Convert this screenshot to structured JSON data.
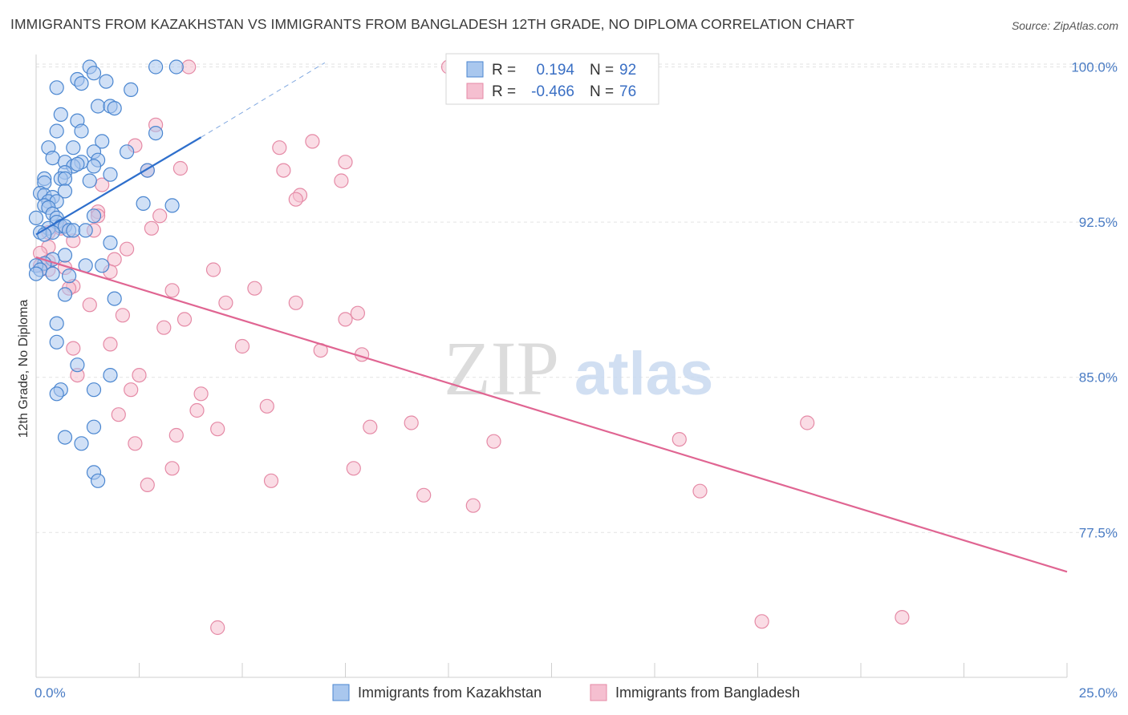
{
  "header": {
    "title": "IMMIGRANTS FROM KAZAKHSTAN VS IMMIGRANTS FROM BANGLADESH 12TH GRADE, NO DIPLOMA CORRELATION CHART",
    "source": "Source: ZipAtlas.com"
  },
  "watermark": {
    "zip": "ZIP",
    "atlas": "atlas"
  },
  "colors": {
    "blue_fill": "#a9c7ee",
    "blue_stroke": "#4a86d0",
    "blue_line": "#2e6fcc",
    "pink_fill": "#f5bfd0",
    "pink_stroke": "#e58aa6",
    "pink_line": "#e06592",
    "grid": "#e3e3e3",
    "axis_text": "#4a7cc4"
  },
  "legend": {
    "rows": [
      {
        "r_label": "R =",
        "r_value": "0.194",
        "n_label": "N =",
        "n_value": "92"
      },
      {
        "r_label": "R =",
        "r_value": "-0.466",
        "n_label": "N =",
        "n_value": "76"
      }
    ]
  },
  "chart_data": {
    "type": "scatter",
    "title": "IMMIGRANTS FROM KAZAKHSTAN VS IMMIGRANTS FROM BANGLADESH 12TH GRADE, NO DIPLOMA CORRELATION CHART",
    "xlabel": "",
    "ylabel": "12th Grade, No Diploma",
    "xlim": [
      0,
      25
    ],
    "ylim": [
      70.5,
      100.6
    ],
    "x_tick_labels": [
      "0.0%",
      "25.0%"
    ],
    "y_ticks": [
      77.5,
      85.0,
      92.5,
      100.0
    ],
    "y_tick_labels": [
      "77.5%",
      "85.0%",
      "92.5%",
      "100.0%"
    ],
    "grid": true,
    "legend_position": "top-center",
    "series": [
      {
        "name": "Immigrants from Kazakhstan",
        "color": "#4a86d0",
        "r": 0.194,
        "n": 92,
        "trend": {
          "x": [
            0.0,
            4.0
          ],
          "y": [
            91.9,
            96.6
          ],
          "dashed_to": [
            7.0,
            100.2
          ]
        },
        "points": [
          [
            1.3,
            100.0
          ],
          [
            1.4,
            99.7
          ],
          [
            2.9,
            100.0
          ],
          [
            3.4,
            100.0
          ],
          [
            1.0,
            99.4
          ],
          [
            1.1,
            99.2
          ],
          [
            1.7,
            99.3
          ],
          [
            0.5,
            99.0
          ],
          [
            2.3,
            98.9
          ],
          [
            1.5,
            98.1
          ],
          [
            1.8,
            98.1
          ],
          [
            1.9,
            98.0
          ],
          [
            0.6,
            97.7
          ],
          [
            1.0,
            97.4
          ],
          [
            0.5,
            96.9
          ],
          [
            1.1,
            96.9
          ],
          [
            2.9,
            96.8
          ],
          [
            1.6,
            96.4
          ],
          [
            0.9,
            96.1
          ],
          [
            0.3,
            96.1
          ],
          [
            1.4,
            95.9
          ],
          [
            2.2,
            95.9
          ],
          [
            0.4,
            95.6
          ],
          [
            1.1,
            95.4
          ],
          [
            1.5,
            95.5
          ],
          [
            0.7,
            95.4
          ],
          [
            0.9,
            95.2
          ],
          [
            1.0,
            95.3
          ],
          [
            1.4,
            95.2
          ],
          [
            2.7,
            95.0
          ],
          [
            0.7,
            94.9
          ],
          [
            1.8,
            94.8
          ],
          [
            0.2,
            94.6
          ],
          [
            0.6,
            94.6
          ],
          [
            0.7,
            94.6
          ],
          [
            1.3,
            94.5
          ],
          [
            0.2,
            94.4
          ],
          [
            0.7,
            94.0
          ],
          [
            0.1,
            93.9
          ],
          [
            0.2,
            93.8
          ],
          [
            0.4,
            93.7
          ],
          [
            0.3,
            93.5
          ],
          [
            0.5,
            93.5
          ],
          [
            0.2,
            93.3
          ],
          [
            0.3,
            93.2
          ],
          [
            2.6,
            93.4
          ],
          [
            3.3,
            93.3
          ],
          [
            0.4,
            92.9
          ],
          [
            0.5,
            92.7
          ],
          [
            0.0,
            92.7
          ],
          [
            1.4,
            92.8
          ],
          [
            0.5,
            92.5
          ],
          [
            0.6,
            92.3
          ],
          [
            0.7,
            92.3
          ],
          [
            0.8,
            92.1
          ],
          [
            0.3,
            92.2
          ],
          [
            0.1,
            92.0
          ],
          [
            0.9,
            92.1
          ],
          [
            1.2,
            92.1
          ],
          [
            0.4,
            92.0
          ],
          [
            0.2,
            91.9
          ],
          [
            1.8,
            91.5
          ],
          [
            0.7,
            90.9
          ],
          [
            0.4,
            90.7
          ],
          [
            0.2,
            90.5
          ],
          [
            1.2,
            90.4
          ],
          [
            1.6,
            90.4
          ],
          [
            0.0,
            90.4
          ],
          [
            0.1,
            90.2
          ],
          [
            0.0,
            90.0
          ],
          [
            0.4,
            90.0
          ],
          [
            0.8,
            89.9
          ],
          [
            0.7,
            89.0
          ],
          [
            1.9,
            88.8
          ],
          [
            0.5,
            87.6
          ],
          [
            0.5,
            86.7
          ],
          [
            1.0,
            85.6
          ],
          [
            1.8,
            85.1
          ],
          [
            1.4,
            84.4
          ],
          [
            0.6,
            84.4
          ],
          [
            0.5,
            84.2
          ],
          [
            1.4,
            82.6
          ],
          [
            0.7,
            82.1
          ],
          [
            1.1,
            81.8
          ],
          [
            1.4,
            80.4
          ],
          [
            1.5,
            80.0
          ]
        ]
      },
      {
        "name": "Immigrants from Bangladesh",
        "color": "#e58aa6",
        "r": -0.466,
        "n": 76,
        "trend": {
          "x": [
            0.0,
            25.0
          ],
          "y": [
            90.8,
            75.6
          ]
        },
        "points": [
          [
            10.0,
            100.0
          ],
          [
            3.7,
            100.0
          ],
          [
            2.9,
            97.2
          ],
          [
            6.7,
            96.4
          ],
          [
            5.9,
            96.1
          ],
          [
            2.4,
            96.2
          ],
          [
            7.5,
            95.4
          ],
          [
            2.7,
            95.0
          ],
          [
            3.5,
            95.1
          ],
          [
            6.0,
            95.0
          ],
          [
            7.4,
            94.5
          ],
          [
            1.6,
            94.3
          ],
          [
            6.4,
            93.8
          ],
          [
            6.3,
            93.6
          ],
          [
            1.5,
            93.0
          ],
          [
            1.5,
            92.8
          ],
          [
            3.0,
            92.8
          ],
          [
            2.8,
            92.2
          ],
          [
            0.6,
            92.2
          ],
          [
            0.3,
            92.0
          ],
          [
            1.4,
            92.1
          ],
          [
            0.9,
            91.6
          ],
          [
            0.3,
            91.3
          ],
          [
            2.2,
            91.2
          ],
          [
            0.1,
            91.0
          ],
          [
            1.9,
            90.7
          ],
          [
            0.3,
            90.6
          ],
          [
            0.7,
            90.3
          ],
          [
            0.1,
            90.4
          ],
          [
            0.3,
            90.2
          ],
          [
            4.3,
            90.2
          ],
          [
            1.8,
            90.1
          ],
          [
            0.9,
            89.4
          ],
          [
            0.8,
            89.3
          ],
          [
            3.3,
            89.2
          ],
          [
            5.3,
            89.3
          ],
          [
            6.3,
            88.6
          ],
          [
            4.6,
            88.6
          ],
          [
            1.3,
            88.5
          ],
          [
            2.1,
            88.0
          ],
          [
            3.6,
            87.8
          ],
          [
            7.8,
            88.1
          ],
          [
            7.5,
            87.8
          ],
          [
            3.1,
            87.4
          ],
          [
            0.9,
            86.4
          ],
          [
            1.8,
            86.6
          ],
          [
            5.0,
            86.5
          ],
          [
            6.9,
            86.3
          ],
          [
            7.9,
            86.1
          ],
          [
            2.5,
            85.1
          ],
          [
            1.0,
            85.1
          ],
          [
            4.0,
            84.2
          ],
          [
            2.3,
            84.4
          ],
          [
            3.9,
            83.4
          ],
          [
            5.6,
            83.6
          ],
          [
            2.0,
            83.2
          ],
          [
            9.1,
            82.8
          ],
          [
            8.1,
            82.6
          ],
          [
            4.4,
            82.5
          ],
          [
            3.4,
            82.2
          ],
          [
            15.6,
            82.0
          ],
          [
            2.4,
            81.8
          ],
          [
            11.1,
            81.9
          ],
          [
            18.7,
            82.8
          ],
          [
            3.3,
            80.6
          ],
          [
            7.7,
            80.6
          ],
          [
            2.7,
            79.8
          ],
          [
            5.7,
            80.0
          ],
          [
            16.1,
            79.5
          ],
          [
            9.4,
            79.3
          ],
          [
            10.6,
            78.8
          ],
          [
            4.4,
            72.9
          ],
          [
            17.6,
            73.2
          ],
          [
            21.0,
            73.4
          ]
        ]
      }
    ]
  },
  "bottom_legend": {
    "items": [
      "Immigrants from Kazakhstan",
      "Immigrants from Bangladesh"
    ]
  }
}
